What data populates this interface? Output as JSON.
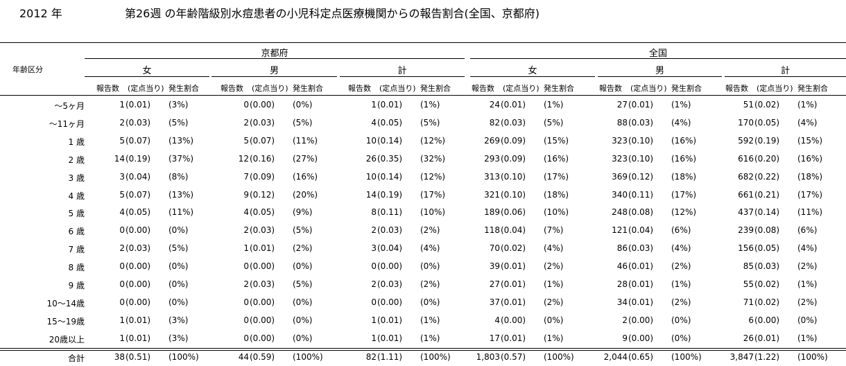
{
  "title": {
    "year": "2012 年",
    "main": "第26週 の年齢階級別水痘患者の小児科定点医療機関からの報告割合(全国、京都府)"
  },
  "header": {
    "age_label": "年齢区分",
    "regions": [
      "京都府",
      "全国"
    ],
    "groups": [
      "女",
      "男",
      "計"
    ],
    "col_count": "報告数",
    "col_rate": "(定点当り)",
    "col_pct": "発生割合"
  },
  "rows": [
    {
      "label": "～5ヶ月",
      "cells": [
        [
          "1",
          "(0.01)",
          "(3%)"
        ],
        [
          "0",
          "(0.00)",
          "(0%)"
        ],
        [
          "1",
          "(0.01)",
          "(1%)"
        ],
        [
          "24",
          "(0.01)",
          "(1%)"
        ],
        [
          "27",
          "(0.01)",
          "(1%)"
        ],
        [
          "51",
          "(0.02)",
          "(1%)"
        ]
      ]
    },
    {
      "label": "～11ヶ月",
      "cells": [
        [
          "2",
          "(0.03)",
          "(5%)"
        ],
        [
          "2",
          "(0.03)",
          "(5%)"
        ],
        [
          "4",
          "(0.05)",
          "(5%)"
        ],
        [
          "82",
          "(0.03)",
          "(5%)"
        ],
        [
          "88",
          "(0.03)",
          "(4%)"
        ],
        [
          "170",
          "(0.05)",
          "(4%)"
        ]
      ]
    },
    {
      "label": "1 歳",
      "cells": [
        [
          "5",
          "(0.07)",
          "(13%)"
        ],
        [
          "5",
          "(0.07)",
          "(11%)"
        ],
        [
          "10",
          "(0.14)",
          "(12%)"
        ],
        [
          "269",
          "(0.09)",
          "(15%)"
        ],
        [
          "323",
          "(0.10)",
          "(16%)"
        ],
        [
          "592",
          "(0.19)",
          "(15%)"
        ]
      ]
    },
    {
      "label": "2 歳",
      "cells": [
        [
          "14",
          "(0.19)",
          "(37%)"
        ],
        [
          "12",
          "(0.16)",
          "(27%)"
        ],
        [
          "26",
          "(0.35)",
          "(32%)"
        ],
        [
          "293",
          "(0.09)",
          "(16%)"
        ],
        [
          "323",
          "(0.10)",
          "(16%)"
        ],
        [
          "616",
          "(0.20)",
          "(16%)"
        ]
      ]
    },
    {
      "label": "3 歳",
      "cells": [
        [
          "3",
          "(0.04)",
          "(8%)"
        ],
        [
          "7",
          "(0.09)",
          "(16%)"
        ],
        [
          "10",
          "(0.14)",
          "(12%)"
        ],
        [
          "313",
          "(0.10)",
          "(17%)"
        ],
        [
          "369",
          "(0.12)",
          "(18%)"
        ],
        [
          "682",
          "(0.22)",
          "(18%)"
        ]
      ]
    },
    {
      "label": "4 歳",
      "cells": [
        [
          "5",
          "(0.07)",
          "(13%)"
        ],
        [
          "9",
          "(0.12)",
          "(20%)"
        ],
        [
          "14",
          "(0.19)",
          "(17%)"
        ],
        [
          "321",
          "(0.10)",
          "(18%)"
        ],
        [
          "340",
          "(0.11)",
          "(17%)"
        ],
        [
          "661",
          "(0.21)",
          "(17%)"
        ]
      ]
    },
    {
      "label": "5 歳",
      "cells": [
        [
          "4",
          "(0.05)",
          "(11%)"
        ],
        [
          "4",
          "(0.05)",
          "(9%)"
        ],
        [
          "8",
          "(0.11)",
          "(10%)"
        ],
        [
          "189",
          "(0.06)",
          "(10%)"
        ],
        [
          "248",
          "(0.08)",
          "(12%)"
        ],
        [
          "437",
          "(0.14)",
          "(11%)"
        ]
      ]
    },
    {
      "label": "6 歳",
      "cells": [
        [
          "0",
          "(0.00)",
          "(0%)"
        ],
        [
          "2",
          "(0.03)",
          "(5%)"
        ],
        [
          "2",
          "(0.03)",
          "(2%)"
        ],
        [
          "118",
          "(0.04)",
          "(7%)"
        ],
        [
          "121",
          "(0.04)",
          "(6%)"
        ],
        [
          "239",
          "(0.08)",
          "(6%)"
        ]
      ]
    },
    {
      "label": "7 歳",
      "cells": [
        [
          "2",
          "(0.03)",
          "(5%)"
        ],
        [
          "1",
          "(0.01)",
          "(2%)"
        ],
        [
          "3",
          "(0.04)",
          "(4%)"
        ],
        [
          "70",
          "(0.02)",
          "(4%)"
        ],
        [
          "86",
          "(0.03)",
          "(4%)"
        ],
        [
          "156",
          "(0.05)",
          "(4%)"
        ]
      ]
    },
    {
      "label": "8 歳",
      "cells": [
        [
          "0",
          "(0.00)",
          "(0%)"
        ],
        [
          "0",
          "(0.00)",
          "(0%)"
        ],
        [
          "0",
          "(0.00)",
          "(0%)"
        ],
        [
          "39",
          "(0.01)",
          "(2%)"
        ],
        [
          "46",
          "(0.01)",
          "(2%)"
        ],
        [
          "85",
          "(0.03)",
          "(2%)"
        ]
      ]
    },
    {
      "label": "9 歳",
      "cells": [
        [
          "0",
          "(0.00)",
          "(0%)"
        ],
        [
          "2",
          "(0.03)",
          "(5%)"
        ],
        [
          "2",
          "(0.03)",
          "(2%)"
        ],
        [
          "27",
          "(0.01)",
          "(1%)"
        ],
        [
          "28",
          "(0.01)",
          "(1%)"
        ],
        [
          "55",
          "(0.02)",
          "(1%)"
        ]
      ]
    },
    {
      "label": "10～14歳",
      "cells": [
        [
          "0",
          "(0.00)",
          "(0%)"
        ],
        [
          "0",
          "(0.00)",
          "(0%)"
        ],
        [
          "0",
          "(0.00)",
          "(0%)"
        ],
        [
          "37",
          "(0.01)",
          "(2%)"
        ],
        [
          "34",
          "(0.01)",
          "(2%)"
        ],
        [
          "71",
          "(0.02)",
          "(2%)"
        ]
      ]
    },
    {
      "label": "15～19歳",
      "cells": [
        [
          "1",
          "(0.01)",
          "(3%)"
        ],
        [
          "0",
          "(0.00)",
          "(0%)"
        ],
        [
          "1",
          "(0.01)",
          "(1%)"
        ],
        [
          "4",
          "(0.00)",
          "(0%)"
        ],
        [
          "2",
          "(0.00)",
          "(0%)"
        ],
        [
          "6",
          "(0.00)",
          "(0%)"
        ]
      ]
    },
    {
      "label": "20歳以上",
      "cells": [
        [
          "1",
          "(0.01)",
          "(3%)"
        ],
        [
          "0",
          "(0.00)",
          "(0%)"
        ],
        [
          "1",
          "(0.01)",
          "(1%)"
        ],
        [
          "17",
          "(0.01)",
          "(1%)"
        ],
        [
          "9",
          "(0.00)",
          "(0%)"
        ],
        [
          "26",
          "(0.01)",
          "(1%)"
        ]
      ]
    }
  ],
  "total": {
    "label": "合計",
    "cells": [
      [
        "38",
        "(0.51)",
        "(100%)"
      ],
      [
        "44",
        "(0.59)",
        "(100%)"
      ],
      [
        "82",
        "(1.11)",
        "(100%)"
      ],
      [
        "1,803",
        "(0.57)",
        "(100%)"
      ],
      [
        "2,044",
        "(0.65)",
        "(100%)"
      ],
      [
        "3,847",
        "(1.22)",
        "(100%)"
      ]
    ]
  }
}
